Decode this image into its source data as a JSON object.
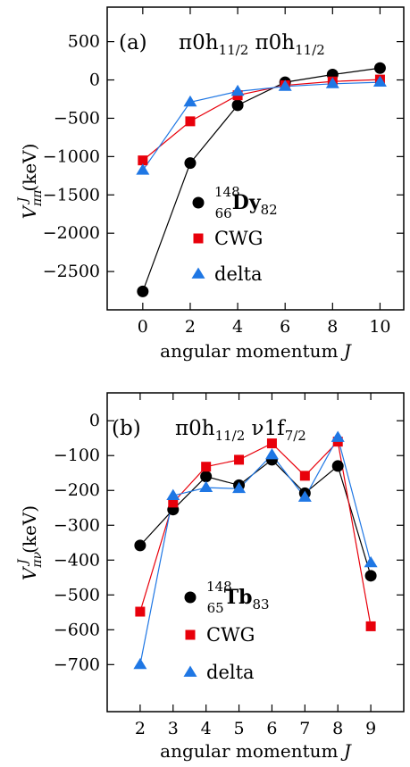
{
  "chart_data": [
    {
      "type": "line",
      "panel_label": "(a)",
      "title": "π0h11/2 π0h11/2",
      "title_parts": [
        {
          "text": "π0h",
          "sub": "11/2"
        },
        {
          "text": " π0h",
          "sub": "11/2"
        }
      ],
      "xlabel": "angular momentum J",
      "ylabel": "V^J_ππ (keV)",
      "ylabel_main": "V",
      "ylabel_sup": "J",
      "ylabel_sub": "ππ",
      "ylabel_unit": "(keV)",
      "xlim": [
        -1.5,
        11
      ],
      "ylim": [
        -3000,
        950
      ],
      "xticks": [
        0,
        2,
        4,
        6,
        8,
        10
      ],
      "yticks": [
        500,
        0,
        -500,
        -1000,
        -1500,
        -2000,
        -2500
      ],
      "ytick_labels": [
        "500",
        "0",
        "−500",
        "−1000",
        "−1500",
        "−2000",
        "−2500"
      ],
      "legend_position": "center-right",
      "series": [
        {
          "name": "148/66 Dy 82",
          "label_main": "Dy",
          "label_pre_sup": "148",
          "label_pre_sub": "66",
          "label_post_sub": "82",
          "marker": "circle",
          "color": "#000000",
          "x": [
            0,
            2,
            4,
            6,
            8,
            10
          ],
          "y": [
            -2760,
            -1085,
            -330,
            -30,
            70,
            155
          ]
        },
        {
          "name": "CWG",
          "marker": "square",
          "color": "#e8000b",
          "x": [
            0,
            2,
            4,
            6,
            8,
            10
          ],
          "y": [
            -1050,
            -540,
            -200,
            -70,
            -20,
            5
          ]
        },
        {
          "name": "delta",
          "marker": "triangle",
          "color": "#1f77e4",
          "x": [
            0,
            2,
            4,
            6,
            8,
            10
          ],
          "y": [
            -1180,
            -290,
            -150,
            -85,
            -50,
            -30
          ]
        }
      ]
    },
    {
      "type": "line",
      "panel_label": "(b)",
      "title": "π0h11/2 ν1f7/2",
      "title_parts": [
        {
          "text": "π0h",
          "sub": "11/2"
        },
        {
          "text": " ν1f",
          "sub": "7/2"
        }
      ],
      "xlabel": "angular momentum J",
      "ylabel": "V^J_πν (keV)",
      "ylabel_main": "V",
      "ylabel_sup": "J",
      "ylabel_sub": "πν",
      "ylabel_unit": "(keV)",
      "xlim": [
        1,
        10
      ],
      "ylim": [
        -835,
        80
      ],
      "xticks": [
        2,
        3,
        4,
        5,
        6,
        7,
        8,
        9
      ],
      "yticks": [
        0,
        -100,
        -200,
        -300,
        -400,
        -500,
        -600,
        -700
      ],
      "ytick_labels": [
        "0",
        "−100",
        "−200",
        "−300",
        "−400",
        "−500",
        "−600",
        "−700"
      ],
      "legend_position": "bottom-center",
      "series": [
        {
          "name": "148/65 Tb 83",
          "label_main": "Tb",
          "label_pre_sup": "148",
          "label_pre_sub": "65",
          "label_post_sub": "83",
          "marker": "circle",
          "color": "#000000",
          "x": [
            2,
            3,
            4,
            5,
            6,
            7,
            8,
            9
          ],
          "y": [
            -358,
            -255,
            -160,
            -185,
            -112,
            -208,
            -130,
            -445
          ]
        },
        {
          "name": "CWG",
          "marker": "square",
          "color": "#e8000b",
          "x": [
            2,
            3,
            4,
            5,
            6,
            7,
            8,
            9
          ],
          "y": [
            -548,
            -235,
            -132,
            -112,
            -65,
            -158,
            -60,
            -590
          ]
        },
        {
          "name": "delta",
          "marker": "triangle",
          "color": "#1f77e4",
          "x": [
            2,
            3,
            4,
            5,
            6,
            7,
            8,
            9
          ],
          "y": [
            -700,
            -215,
            -192,
            -195,
            -98,
            -220,
            -48,
            -408
          ]
        }
      ]
    }
  ]
}
